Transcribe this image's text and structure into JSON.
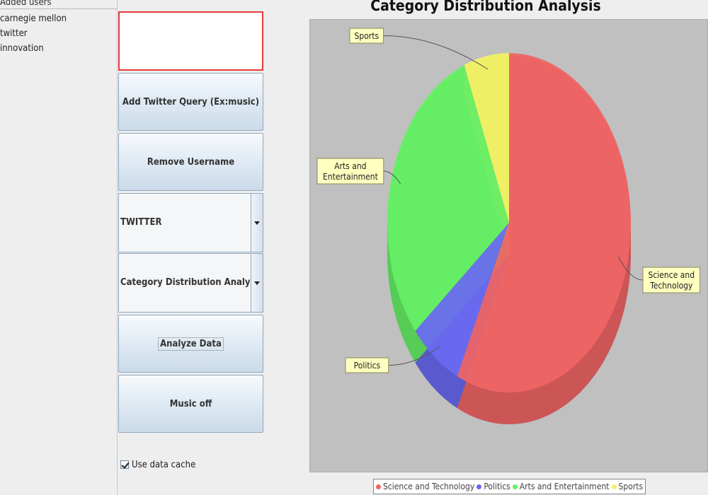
{
  "users_panel": {
    "title": "Added users",
    "items": [
      "carnegie mellon",
      "twitter",
      "innovation"
    ]
  },
  "controls": {
    "query_input_value": "",
    "add_query_label": "Add Twitter Query (Ex:music)",
    "remove_username_label": "Remove Username",
    "source_select_value": "TWITTER",
    "analysis_select_value": "Category Distribution Analysis",
    "analyze_label": "Analyze Data",
    "music_label": "Music off",
    "use_cache_label": "Use data cache",
    "use_cache_checked": true
  },
  "colors": {
    "input_border": "#e4393b",
    "plot_background": "#c0c0c0",
    "science_and_technology": "#f06565",
    "politics": "#6a6af2",
    "arts_and_entertainment": "#66f066",
    "sports": "#f2f266"
  },
  "chart_data": {
    "type": "pie",
    "title": "Category Distribution Analysis",
    "style": "3d",
    "series": [
      {
        "name": "Science and Technology",
        "label": "Science and\nTechnology",
        "value": 57,
        "color": "#f06565"
      },
      {
        "name": "Politics",
        "label": "Politics",
        "value": 7,
        "color": "#6a6af2"
      },
      {
        "name": "Arts and Entertainment",
        "label": "Arts and\nEntertainment",
        "value": 30,
        "color": "#66f066"
      },
      {
        "name": "Sports",
        "label": "Sports",
        "value": 6,
        "color": "#f2f266"
      }
    ],
    "legend": [
      "Science and Technology",
      "Politics",
      "Arts and Entertainment",
      "Sports"
    ],
    "legend_position": "bottom"
  }
}
